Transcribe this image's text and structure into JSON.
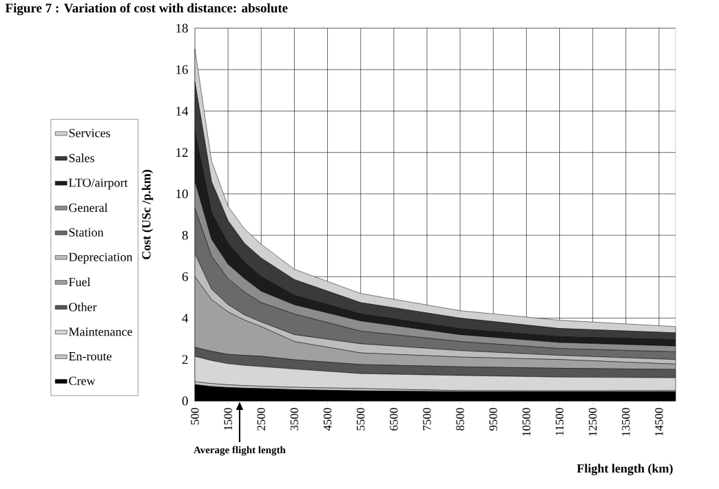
{
  "chart_data": {
    "type": "area",
    "stacked": true,
    "title": "Figure 7 : Variation of cost with distance: absolute",
    "xlabel": "Flight length (km)",
    "ylabel": "Cost (USc /p.km)",
    "x": [
      500,
      1000,
      1500,
      2000,
      2500,
      3500,
      5500,
      8500,
      11500,
      15000
    ],
    "series": [
      {
        "name": "Crew",
        "color": "#000000",
        "values": [
          0.79,
          0.7,
          0.65,
          0.62,
          0.6,
          0.55,
          0.49,
          0.45,
          0.45,
          0.45
        ]
      },
      {
        "name": "En-route",
        "color": "#c4c4c4",
        "values": [
          0.14,
          0.14,
          0.13,
          0.12,
          0.11,
          0.11,
          0.11,
          0.05,
          0.04,
          0.05
        ]
      },
      {
        "name": "Maintenance",
        "color": "#d6d6d6",
        "values": [
          1.22,
          1.11,
          1.02,
          0.98,
          0.95,
          0.88,
          0.72,
          0.73,
          0.66,
          0.62
        ]
      },
      {
        "name": "Other",
        "color": "#555555",
        "values": [
          0.44,
          0.45,
          0.45,
          0.48,
          0.5,
          0.45,
          0.44,
          0.42,
          0.43,
          0.4
        ]
      },
      {
        "name": "Fuel",
        "color": "#a0a0a0",
        "values": [
          3.41,
          2.5,
          2.05,
          1.7,
          1.43,
          0.88,
          0.56,
          0.47,
          0.42,
          0.26
        ]
      },
      {
        "name": "Depreciation",
        "color": "#bdbdbd",
        "values": [
          1.1,
          0.5,
          0.35,
          0.25,
          0.22,
          0.33,
          0.44,
          0.31,
          0.2,
          0.22
        ]
      },
      {
        "name": "Station",
        "color": "#6a6a6a",
        "values": [
          2.2,
          1.6,
          1.25,
          1.1,
          0.94,
          1.0,
          0.61,
          0.44,
          0.33,
          0.37
        ]
      },
      {
        "name": "General",
        "color": "#8c8c8c",
        "values": [
          1.3,
          0.8,
          0.7,
          0.65,
          0.55,
          0.44,
          0.49,
          0.33,
          0.29,
          0.28
        ]
      },
      {
        "name": "LTO/airport",
        "color": "#1c1c1c",
        "values": [
          2.4,
          1.3,
          1.0,
          0.8,
          0.7,
          0.46,
          0.34,
          0.28,
          0.28,
          0.31
        ]
      },
      {
        "name": "Sales",
        "color": "#3a3a3a",
        "values": [
          2.4,
          1.5,
          1.1,
          0.9,
          0.9,
          0.76,
          0.55,
          0.52,
          0.4,
          0.33
        ]
      },
      {
        "name": "Services",
        "color": "#d0d0d0",
        "values": [
          1.6,
          1.0,
          0.7,
          0.7,
          0.67,
          0.5,
          0.44,
          0.36,
          0.4,
          0.3
        ]
      }
    ],
    "xlim": [
      500,
      15000
    ],
    "xticks": [
      500,
      1500,
      2500,
      3500,
      4500,
      5500,
      6500,
      7500,
      8500,
      9500,
      10500,
      11500,
      12500,
      13500,
      14500
    ],
    "ylim": [
      0,
      18
    ],
    "yticks": [
      0,
      2,
      4,
      6,
      8,
      10,
      12,
      14,
      16,
      18
    ],
    "grid": true,
    "legend": "left",
    "annotations": [
      "Average flight length"
    ]
  }
}
